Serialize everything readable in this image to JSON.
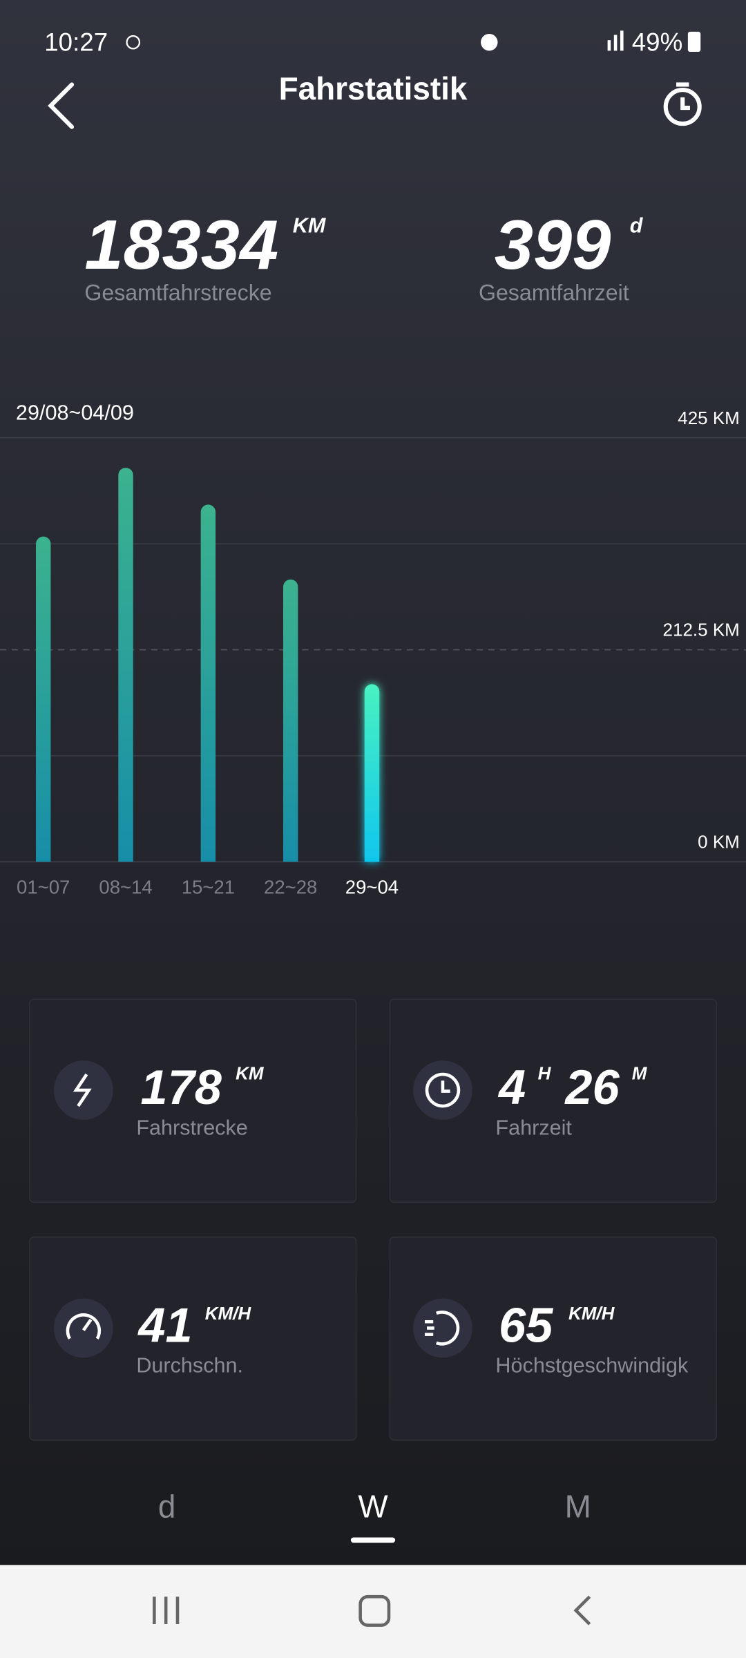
{
  "status_bar": {
    "time": "10:27",
    "battery": "49%"
  },
  "header": {
    "title": "Fahrstatistik"
  },
  "totals": [
    {
      "value": 18334,
      "unit": "KM",
      "label": "Gesamtfahrstrecke"
    },
    {
      "value": 399,
      "unit": "d",
      "label": "Gesamtfahrzeit"
    }
  ],
  "chart_data": {
    "type": "bar",
    "subtitle": "29/08~04/09",
    "categories": [
      "01~07",
      "08~14",
      "15~21",
      "22~28",
      "29~04"
    ],
    "values": [
      326,
      395,
      358,
      283,
      178
    ],
    "selected": 4,
    "color": "#27a49a",
    "highlight_color": "#3ff0c8",
    "ylim": [
      0,
      425
    ],
    "yticks": [
      {
        "value": 0,
        "label": "0 KM"
      },
      {
        "value": 212.5,
        "label": "212.5 KM"
      },
      {
        "value": 425,
        "label": "425 KM"
      }
    ],
    "minor_grid": [
      106.25,
      318.75
    ],
    "grid": true
  },
  "cards": [
    {
      "value": 178,
      "unit": "KM",
      "label": "Fahrstrecke"
    },
    {
      "hours": 4,
      "hours_unit": "H",
      "minutes": 26,
      "minutes_unit": "M",
      "label": "Fahrzeit"
    },
    {
      "value": 41,
      "unit": "KM/H",
      "label": "Durchschn."
    },
    {
      "value": 65,
      "unit": "KM/H",
      "label": "Höchstgeschwindigk"
    }
  ],
  "tabs": [
    "d",
    "W",
    "M"
  ],
  "active_tab": 1
}
